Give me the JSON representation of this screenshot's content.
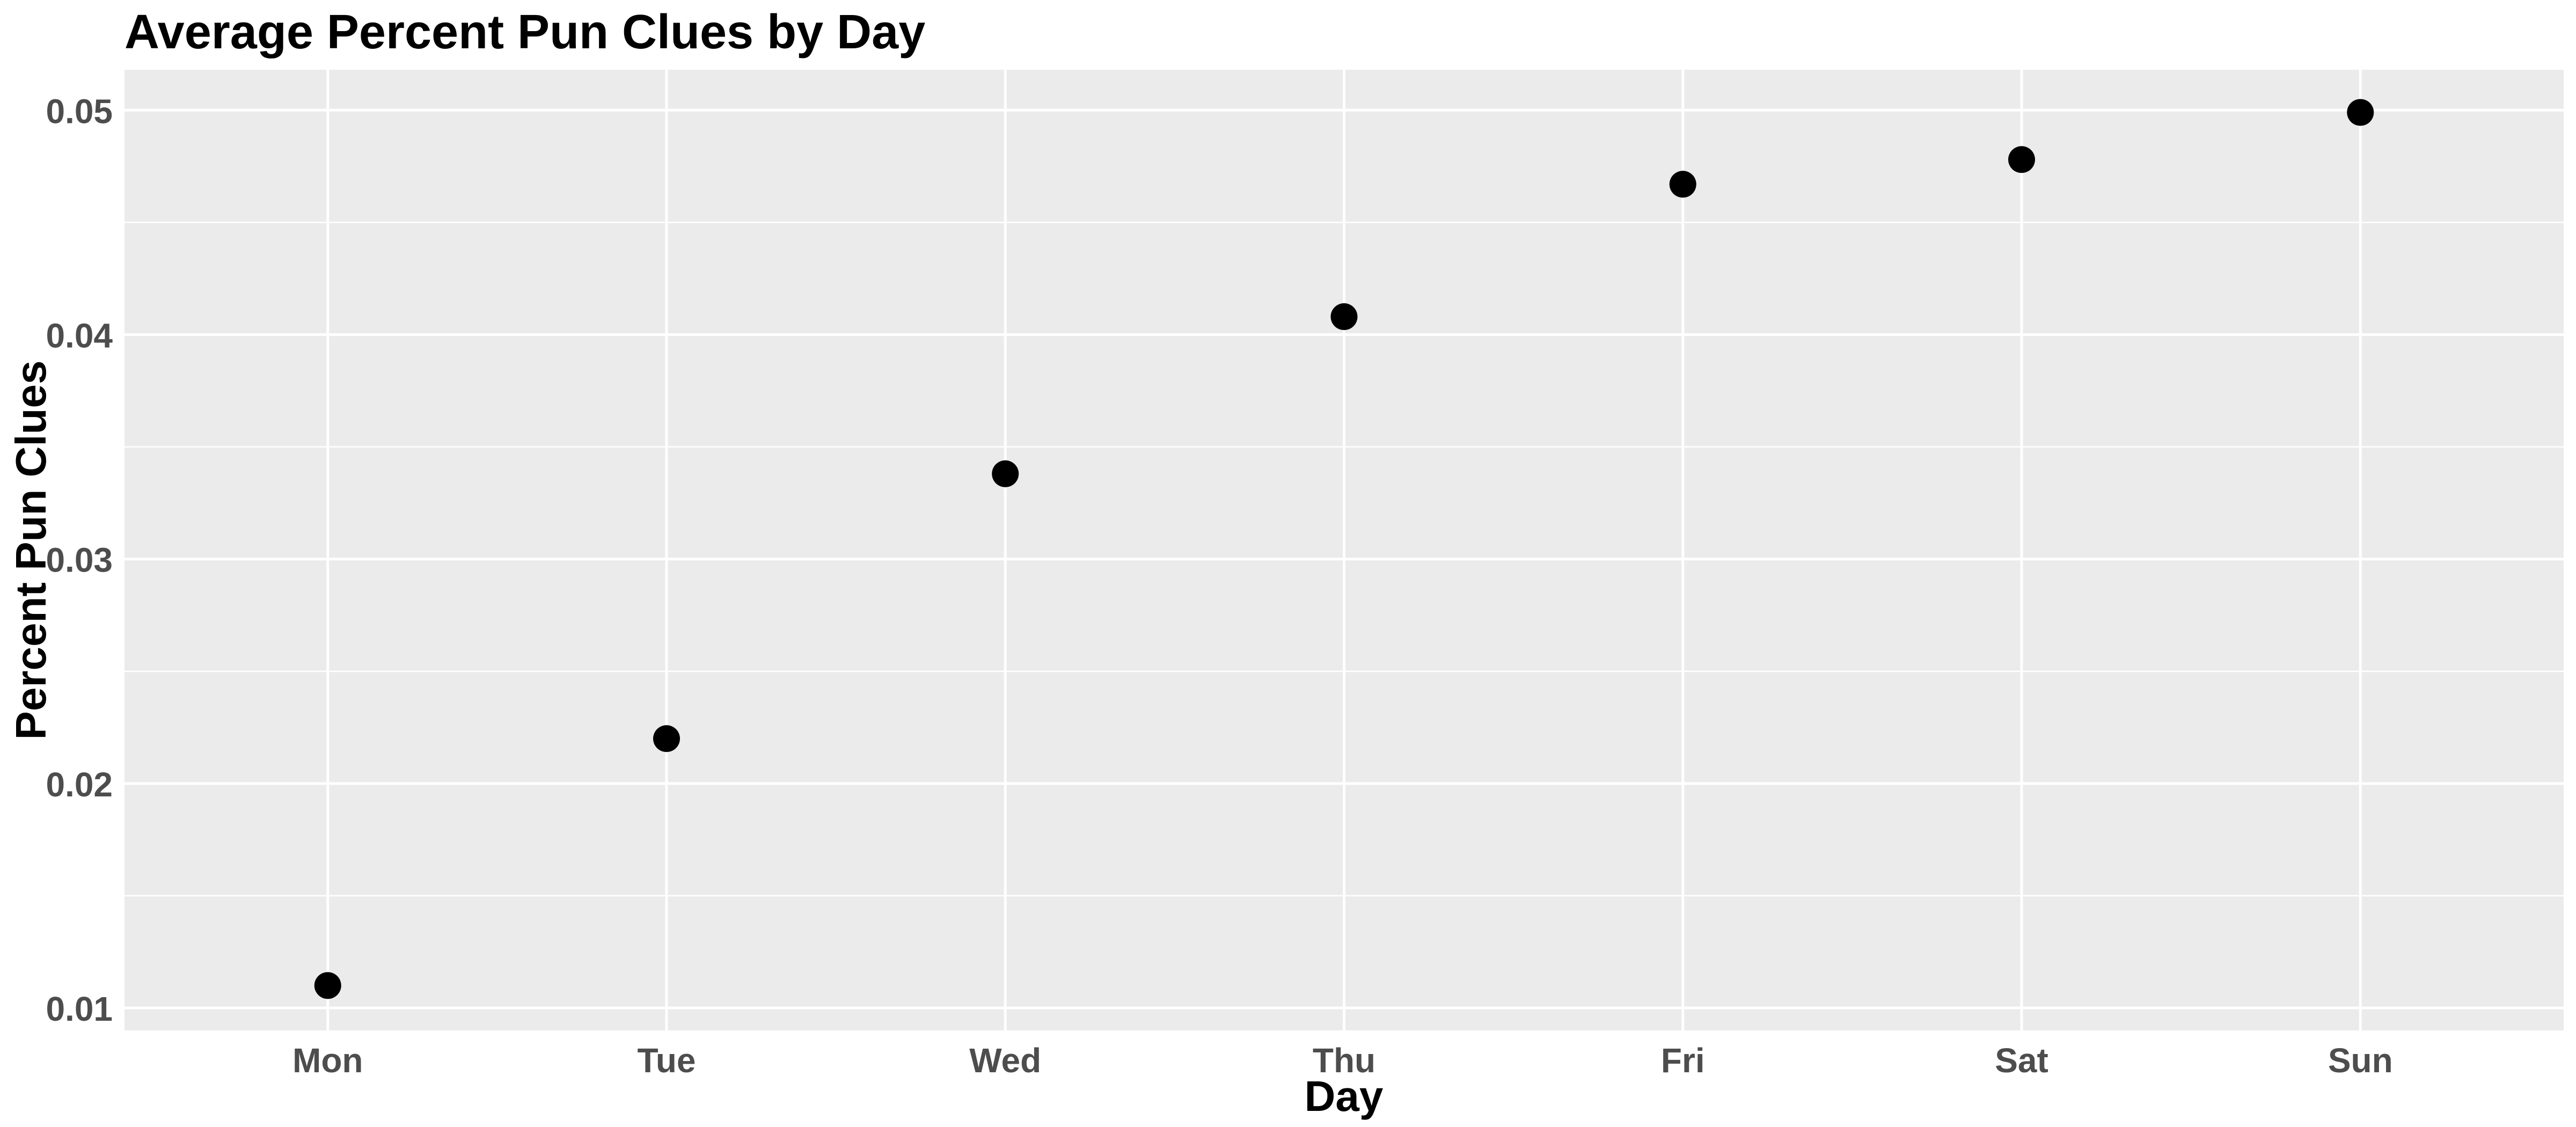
{
  "chart_data": {
    "type": "scatter",
    "title": "Average Percent Pun Clues by Day",
    "xlabel": "Day",
    "ylabel": "Percent Pun Clues",
    "categories": [
      "Mon",
      "Tue",
      "Wed",
      "Thu",
      "Fri",
      "Sat",
      "Sun"
    ],
    "values": [
      0.011,
      0.022,
      0.0338,
      0.0408,
      0.0467,
      0.0478,
      0.0499
    ],
    "ylim": [
      0.009,
      0.0518
    ],
    "yticks": [
      0.01,
      0.02,
      0.03,
      0.04,
      0.05
    ],
    "ytick_labels": [
      "0.01",
      "0.02",
      "0.03",
      "0.04",
      "0.05"
    ],
    "grid": true,
    "legend": "none",
    "colors": {
      "panel": "#ebebeb",
      "grid": "#ffffff",
      "point": "#000000",
      "tick_text": "#4d4d4d"
    }
  }
}
